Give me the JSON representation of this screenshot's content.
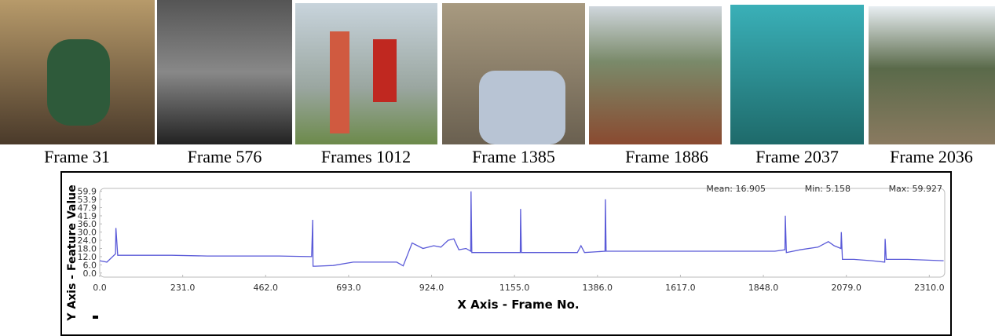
{
  "frames": [
    "Frame 31",
    "Frame 576",
    "Frames 1012",
    "Frame 1385",
    "Frame 1886",
    "Frame 2037",
    "Frame 2036"
  ],
  "chart_data": {
    "type": "line",
    "stats": [
      "Mean: 16.905",
      "Min: 5.158",
      "Max: 59.927"
    ],
    "x_label": "X Axis - Frame No.",
    "y_label": "Y Axis - Feature Value",
    "color": "#5a5ad8",
    "x": [
      0,
      20,
      44,
      45,
      50,
      100,
      200,
      300,
      400,
      500,
      590,
      593,
      594,
      600,
      650,
      706,
      760,
      827,
      845,
      870,
      900,
      930,
      950,
      970,
      986,
      1000,
      1020,
      1033,
      1034,
      1036,
      1100,
      1171,
      1172,
      1174,
      1250,
      1330,
      1340,
      1350,
      1407,
      1408,
      1410,
      1500,
      1600,
      1700,
      1800,
      1880,
      1908,
      1909,
      1912,
      1950,
      2000,
      2029,
      2045,
      2064,
      2065,
      2068,
      2100,
      2150,
      2186,
      2187,
      2190,
      2250,
      2350
    ],
    "values": [
      9,
      8,
      14,
      33,
      13,
      13,
      13,
      12.5,
      12.5,
      12.5,
      12,
      39,
      5,
      5,
      5.5,
      8,
      8,
      8,
      5.2,
      22,
      18,
      20,
      19,
      24,
      25,
      17,
      18,
      16,
      59.9,
      15,
      15,
      15,
      47,
      15,
      15,
      15,
      20,
      15,
      16,
      54,
      16,
      16,
      16,
      16,
      16,
      16,
      17,
      42,
      15,
      17,
      19,
      23,
      20,
      18,
      30,
      10,
      10,
      9,
      8,
      25,
      10,
      10,
      9
    ],
    "xlim": [
      0,
      2353
    ],
    "ylim": [
      -3,
      62
    ],
    "xticks": [
      {
        "value": 0,
        "label": "0.0"
      },
      {
        "value": 231,
        "label": "231.0"
      },
      {
        "value": 462,
        "label": "462.0"
      },
      {
        "value": 693,
        "label": "693.0"
      },
      {
        "value": 924,
        "label": "924.0"
      },
      {
        "value": 1155,
        "label": "1155.0"
      },
      {
        "value": 1386,
        "label": "1386.0"
      },
      {
        "value": 1617,
        "label": "1617.0"
      },
      {
        "value": 1848,
        "label": "1848.0"
      },
      {
        "value": 2079,
        "label": "2079.0"
      },
      {
        "value": 2310,
        "label": "2310.0"
      }
    ],
    "yticks": [
      {
        "value": 0,
        "label": "0.0"
      },
      {
        "value": 6,
        "label": "6.0"
      },
      {
        "value": 12,
        "label": "12.0"
      },
      {
        "value": 18,
        "label": "18.0"
      },
      {
        "value": 24,
        "label": "24.0"
      },
      {
        "value": 30,
        "label": "30.0"
      },
      {
        "value": 36,
        "label": "36.0"
      },
      {
        "value": 41.9,
        "label": "41.9"
      },
      {
        "value": 47.9,
        "label": "47.9"
      },
      {
        "value": 53.9,
        "label": "53.9"
      },
      {
        "value": 59.9,
        "label": "59.9"
      }
    ]
  }
}
